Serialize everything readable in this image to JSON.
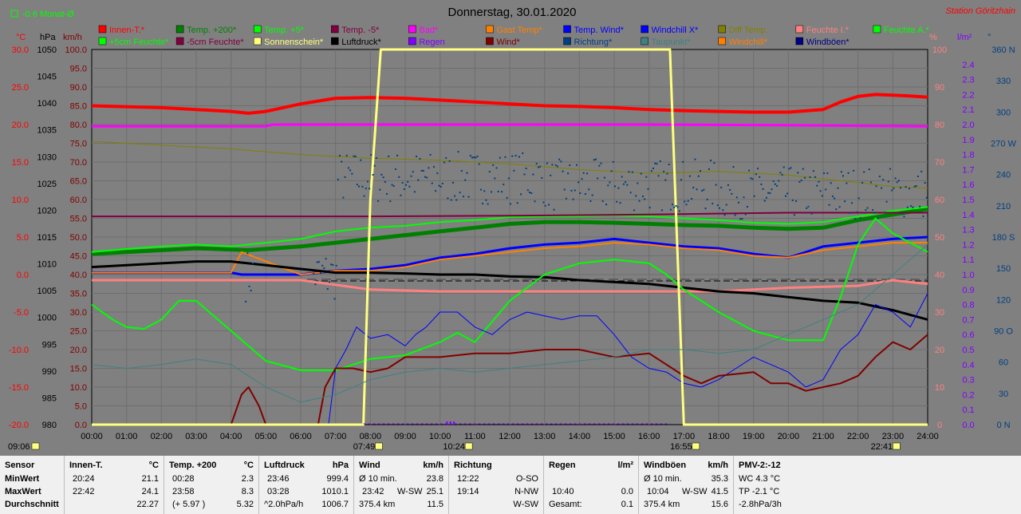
{
  "header": {
    "title": "Donnerstag, 30.01.2020",
    "station": "Station Göritzhain",
    "trend_label": "-0.6 Monat-Ø"
  },
  "axis_units": {
    "celsius": "°C",
    "hpa": "hPa",
    "kmh": "km/h",
    "percent": "%",
    "lm2": "l/m²",
    "degree": "°"
  },
  "legend_row1": [
    {
      "label": "Innen-T.*",
      "color": "#ff0000"
    },
    {
      "label": "Temp. +200*",
      "color": "#008000"
    },
    {
      "label": "Temp. +5*",
      "color": "#00ff00"
    },
    {
      "label": "Temp. -5*",
      "color": "#800040"
    },
    {
      "label": "Bad*",
      "color": "#ff00ff"
    },
    {
      "label": "Gast Temp*",
      "color": "#ff8000"
    },
    {
      "label": "Temp. Wind*",
      "color": "#0000ff"
    },
    {
      "label": "Windchill X*",
      "color": "#0000ff"
    },
    {
      "label": "Diff Temp.",
      "color": "#808000"
    },
    {
      "label": "Feuchte I.*",
      "color": "#ff8080"
    },
    {
      "label": "Feuchte A.*",
      "color": "#00ff00"
    }
  ],
  "legend_row2": [
    {
      "label": "+5cm Feuchte*",
      "color": "#00ff00"
    },
    {
      "label": "-5cm Feuchte*",
      "color": "#800040"
    },
    {
      "label": "Sonnenschein*",
      "color": "#ffff80"
    },
    {
      "label": "Luftdruck*",
      "color": "#000000"
    },
    {
      "label": "Regen",
      "color": "#8000ff"
    },
    {
      "label": "Wind*",
      "color": "#800000"
    },
    {
      "label": "Richtung*",
      "color": "#004080"
    },
    {
      "label": "Taupunkt*",
      "color": "#408080"
    },
    {
      "label": "Windchill*",
      "color": "#ff8000"
    },
    {
      "label": "Windböen*",
      "color": "#000080"
    }
  ],
  "chart_data": {
    "type": "line",
    "x_range": [
      "00:00",
      "24:00"
    ],
    "x_ticks": [
      "00:00",
      "01:00",
      "02:00",
      "03:00",
      "04:00",
      "05:00",
      "06:00",
      "07:00",
      "08:00",
      "09:00",
      "10:00",
      "11:00",
      "12:00",
      "13:00",
      "14:00",
      "15:00",
      "16:00",
      "17:00",
      "18:00",
      "19:00",
      "20:00",
      "21:00",
      "22:00",
      "23:00",
      "24:00"
    ],
    "y_axes": {
      "celsius": {
        "ticks": [
          "30.0",
          "25.0",
          "20.0",
          "15.0",
          "10.0",
          "5.0",
          "0.0",
          "-5.0",
          "-10.0",
          "-15.0",
          "-20.0"
        ],
        "range": [
          -20,
          30
        ]
      },
      "hpa": {
        "ticks": [
          "1050",
          "1045",
          "1040",
          "1035",
          "1030",
          "1025",
          "1020",
          "1015",
          "1010",
          "1005",
          "1000",
          "995",
          "990",
          "985",
          "980"
        ],
        "range": [
          980,
          1050
        ]
      },
      "kmh": {
        "ticks": [
          "100.0",
          "95.0",
          "90.0",
          "85.0",
          "80.0",
          "75.0",
          "70.0",
          "65.0",
          "60.0",
          "55.0",
          "50.0",
          "45.0",
          "40.0",
          "35.0",
          "30.0",
          "25.0",
          "20.0",
          "15.0",
          "10.0",
          "5.0",
          "0.0"
        ],
        "range": [
          0,
          100
        ]
      },
      "percent": {
        "ticks": [
          "100",
          "90",
          "80",
          "70",
          "60",
          "50",
          "40",
          "30",
          "20",
          "10",
          "0"
        ],
        "range": [
          0,
          100
        ]
      },
      "lm2": {
        "ticks": [
          "2.4",
          "2.3",
          "2.2",
          "2.1",
          "2.0",
          "1.9",
          "1.8",
          "1.7",
          "1.6",
          "1.5",
          "1.4",
          "1.3",
          "1.2",
          "1.1",
          "1.0",
          "0.9",
          "0.8",
          "0.7",
          "0.6",
          "0.5",
          "0.4",
          "0.3",
          "0.2",
          "0.1",
          "0.0"
        ],
        "range": [
          0,
          2.5
        ]
      },
      "direction": {
        "ticks": [
          "360 N",
          "330",
          "300",
          "270 W",
          "240",
          "210",
          "180 S",
          "150",
          "120",
          "90 O",
          "60",
          "30",
          "0 N"
        ],
        "range": [
          0,
          360
        ]
      }
    },
    "time_markers": [
      {
        "label": "09:06",
        "x": 0.0
      },
      {
        "label": "07:49",
        "x": 7.82
      },
      {
        "label": "10:24",
        "x": 10.4
      },
      {
        "label": "16:55",
        "x": 16.92
      },
      {
        "label": "22:41",
        "x": 22.68
      }
    ],
    "series": [
      {
        "name": "Innen-T.*",
        "axis": "kmh",
        "color": "#ff0000",
        "width": 4,
        "x": [
          0,
          2,
          4,
          4.5,
          5,
          6,
          7,
          8,
          9,
          10,
          11,
          12,
          13,
          14,
          15,
          16,
          17,
          18,
          19,
          20,
          21,
          21.5,
          22,
          22.5,
          23,
          23.5,
          24
        ],
        "y": [
          85,
          84.5,
          83.5,
          83,
          83.5,
          85.5,
          87,
          87.2,
          87,
          86.5,
          86,
          85.5,
          85,
          84.8,
          84.5,
          84,
          83.7,
          83.5,
          83.3,
          83.3,
          84,
          86,
          87.5,
          88,
          87.8,
          87.6,
          87.3
        ]
      },
      {
        "name": "Bad*",
        "axis": "kmh",
        "color": "#ff00ff",
        "width": 3,
        "x": [
          0,
          5,
          5.2,
          10,
          16,
          20,
          24
        ],
        "y": [
          79.5,
          79.5,
          80,
          80,
          80,
          79.8,
          79.5
        ]
      },
      {
        "name": "Diff Temp.",
        "axis": "kmh",
        "color": "#808000",
        "width": 1,
        "x": [
          0,
          2,
          4,
          6,
          8,
          10,
          12,
          14,
          16,
          18,
          20,
          22,
          23,
          24
        ],
        "y": [
          75.5,
          74.5,
          73.5,
          72,
          71,
          70.5,
          69.5,
          68,
          67,
          67.5,
          66.5,
          64.5,
          63.5,
          63
        ]
      },
      {
        "name": "Temp. +200*",
        "axis": "kmh",
        "color": "#008000",
        "width": 5,
        "x": [
          0,
          1,
          3,
          4.5,
          6,
          8,
          9,
          10,
          11,
          12,
          13,
          14,
          15,
          16,
          17,
          18,
          19,
          20,
          21,
          22,
          23,
          24
        ],
        "y": [
          45.5,
          46,
          47,
          46.5,
          47.5,
          49.5,
          50.5,
          51.5,
          52.5,
          53.5,
          54,
          54,
          53.8,
          53.5,
          53.2,
          53,
          52.5,
          52.2,
          52.5,
          54.5,
          56,
          57.5
        ]
      },
      {
        "name": "Temp. +5*",
        "axis": "kmh",
        "color": "#00ff00",
        "width": 2,
        "x": [
          0,
          1,
          2,
          3,
          4,
          5,
          6,
          7,
          8,
          9,
          10,
          11,
          12,
          13,
          14,
          15,
          16,
          17,
          18,
          19,
          20,
          21,
          22,
          23,
          24
        ],
        "y": [
          46,
          46.8,
          47.5,
          48,
          47.5,
          48.5,
          49.5,
          51.5,
          52.5,
          53,
          54,
          54.5,
          55.3,
          55.5,
          55.5,
          55.8,
          55.5,
          55,
          54.5,
          53.8,
          53.5,
          54,
          55.5,
          57,
          58
        ]
      },
      {
        "name": "Temp. -5*",
        "axis": "kmh",
        "color": "#800040",
        "width": 2,
        "x": [
          0,
          4,
          8,
          12,
          16,
          20,
          24
        ],
        "y": [
          55.5,
          55.5,
          55.5,
          55.7,
          56,
          56.5,
          56.5
        ]
      },
      {
        "name": "Temp. Wind*",
        "axis": "kmh",
        "color": "#0000ff",
        "width": 3,
        "x": [
          0,
          4,
          4.3,
          6,
          7,
          8,
          9,
          10,
          11,
          12,
          13,
          14,
          15,
          16,
          17,
          18,
          19,
          20,
          21,
          22,
          23,
          24
        ],
        "y": [
          40.5,
          40.5,
          40,
          40,
          41,
          41.5,
          42.5,
          44.5,
          45.5,
          47,
          48,
          48.5,
          49.5,
          48.5,
          47.5,
          47,
          45.5,
          44.5,
          47.5,
          48.5,
          49.5,
          50
        ]
      },
      {
        "name": "Windchill*",
        "axis": "kmh",
        "color": "#ff8000",
        "width": 2,
        "x": [
          0,
          4,
          4.3,
          6,
          7,
          8,
          9,
          10,
          11,
          12,
          13,
          14,
          15,
          16,
          17,
          18,
          19,
          20,
          21,
          22,
          23,
          24
        ],
        "y": [
          40.5,
          40.5,
          46,
          40,
          41,
          41,
          42,
          44,
          45,
          46,
          47,
          47.5,
          48.5,
          48,
          47,
          46.5,
          45,
          44.5,
          46.5,
          47.5,
          48.5,
          48.5
        ]
      },
      {
        "name": "Feuchte I.*",
        "axis": "kmh",
        "color": "#ff8080",
        "width": 3,
        "x": [
          0,
          4,
          6,
          8,
          10,
          12,
          14,
          16,
          17,
          18,
          20,
          22,
          23,
          24
        ],
        "y": [
          38.5,
          38.5,
          38.5,
          36,
          35.5,
          35.5,
          35.5,
          35.5,
          35.5,
          35.5,
          36.5,
          37,
          38.5,
          37.5
        ]
      },
      {
        "name": "Luftdruck*",
        "axis": "kmh",
        "color": "#000000",
        "width": 3,
        "x": [
          0,
          2,
          3,
          4,
          5,
          6,
          7,
          8,
          9,
          10,
          11,
          12,
          13,
          14,
          15,
          16,
          17,
          18,
          19,
          20,
          21,
          22,
          23,
          24
        ],
        "y": [
          42,
          43,
          43.5,
          43.5,
          42.5,
          41.5,
          40.5,
          40.5,
          40.3,
          40,
          40,
          39.5,
          39.3,
          38.5,
          38,
          37.5,
          36.5,
          35.5,
          35,
          34,
          33,
          32.5,
          30.5,
          28
        ]
      },
      {
        "name": "Feuchte A.*",
        "axis": "kmh",
        "color": "#00ff00",
        "width": 2,
        "x": [
          0,
          0.6,
          1,
          1.5,
          2,
          2.5,
          3,
          3.5,
          4,
          5,
          6,
          7,
          8,
          9,
          10,
          10.5,
          11,
          12,
          13,
          14,
          15,
          16,
          16.5,
          17,
          18,
          19,
          20,
          21,
          21.5,
          22,
          22.5,
          23,
          24
        ],
        "y": [
          32,
          28,
          26,
          25.5,
          28,
          33,
          33,
          29,
          25,
          17,
          14.5,
          14.5,
          17.5,
          18.5,
          22,
          24.5,
          22,
          33,
          40,
          43,
          44,
          43,
          40,
          36,
          30,
          25,
          22.5,
          22.5,
          34,
          48,
          55,
          51,
          46
        ]
      },
      {
        "name": "Windböen*",
        "axis": "kmh",
        "color": "#0000ff",
        "width": 1,
        "x": [
          0,
          6.5,
          6.8,
          7,
          7.3,
          7.6,
          8,
          8.5,
          9,
          9.3,
          9.6,
          10,
          10.5,
          11,
          11.5,
          12,
          12.5,
          13,
          13.5,
          14,
          14.5,
          15,
          15.5,
          16,
          16.5,
          17,
          17.5,
          18,
          18.5,
          19,
          19.5,
          20,
          20.5,
          21,
          21.5,
          22,
          22.5,
          23,
          23.5,
          24
        ],
        "y": [
          0,
          0,
          0,
          15,
          20,
          26,
          23,
          24,
          21,
          24,
          26,
          30,
          30,
          26,
          24,
          28,
          30,
          29,
          28,
          29,
          29,
          24,
          18,
          15,
          14,
          11,
          10,
          12,
          15,
          18,
          16,
          14,
          10,
          12,
          20,
          24,
          32,
          30,
          26,
          35
        ]
      },
      {
        "name": "Wind*",
        "axis": "kmh",
        "color": "#800000",
        "width": 2,
        "x": [
          0,
          4,
          4.3,
          4.5,
          4.8,
          5,
          6.5,
          6.7,
          7,
          7.5,
          8,
          8.5,
          9,
          10,
          11,
          12,
          13,
          14,
          15,
          16,
          17,
          17.5,
          18,
          19,
          19.5,
          20,
          20.5,
          21,
          21.5,
          22,
          22.5,
          23,
          23.5,
          24
        ],
        "y": [
          0,
          0,
          8,
          10,
          5,
          0,
          0,
          10,
          15,
          15,
          14,
          15,
          18,
          18,
          19,
          19,
          20,
          20,
          18,
          19,
          13,
          11,
          13,
          14,
          11,
          11,
          9,
          10,
          11,
          13,
          18,
          22,
          20,
          24
        ]
      },
      {
        "name": "Sonnenschein*",
        "axis": "percent",
        "color": "#ffff80",
        "width": 3,
        "x": [
          0,
          7.8,
          8.0,
          8.3,
          16.3,
          16.6,
          17.0,
          24
        ],
        "y": [
          0,
          0,
          60,
          100,
          100,
          100,
          0,
          0
        ]
      },
      {
        "name": "Taupunkt*",
        "axis": "kmh",
        "color": "#408080",
        "width": 1,
        "x": [
          0,
          1,
          2,
          3,
          4,
          5,
          6,
          7,
          8,
          9,
          10,
          11,
          12,
          13,
          14,
          15,
          16,
          17,
          18,
          19,
          20,
          21,
          22,
          23,
          24
        ],
        "y": [
          16,
          15,
          16,
          17.5,
          16,
          10,
          6,
          8,
          12,
          14,
          15,
          14,
          15,
          16,
          17,
          18,
          20,
          20,
          19,
          20,
          24,
          28,
          32,
          40,
          48
        ]
      }
    ]
  },
  "stats": {
    "sensor": {
      "header": "Sensor",
      "rows": [
        "MinWert",
        "MaxWert",
        "Durchschnitt"
      ]
    },
    "innen": {
      "title": "Innen-T.",
      "unit": "°C",
      "rows": [
        [
          "20:24",
          "21.1"
        ],
        [
          "22:42",
          "24.1"
        ],
        [
          "",
          "22.27"
        ]
      ]
    },
    "temp200": {
      "title": "Temp. +200",
      "unit": "°C",
      "rows": [
        [
          "00:28",
          "2.3"
        ],
        [
          "23:58",
          "8.3"
        ],
        [
          "(+ 5.97 )",
          "5.32"
        ]
      ]
    },
    "luftdruck": {
      "title": "Luftdruck",
      "unit": "hPa",
      "rows": [
        [
          "23:46",
          "999.4"
        ],
        [
          "03:28",
          "1010.1"
        ],
        [
          "^2.0hPa/h",
          "1006.7"
        ]
      ]
    },
    "wind": {
      "title": "Wind",
      "unit": "km/h",
      "rows": [
        [
          "Ø 10 min.",
          "",
          "23.8"
        ],
        [
          "23:42",
          "W-SW",
          "25.1"
        ],
        [
          "375.4 km",
          "",
          "11.5"
        ]
      ]
    },
    "richtung": {
      "title": "Richtung",
      "rows": [
        [
          "12:22",
          "O-SO"
        ],
        [
          "19:14",
          "N-NW"
        ],
        [
          "",
          "W-SW"
        ]
      ]
    },
    "regen": {
      "title": "Regen",
      "unit": "l/m²",
      "rows": [
        [
          "",
          ""
        ],
        [
          "10:40",
          "0.0"
        ],
        [
          "Gesamt:",
          "0.1"
        ]
      ]
    },
    "windboeen": {
      "title": "Windböen",
      "unit": "km/h",
      "rows": [
        [
          "Ø 10 min.",
          "",
          "35.3"
        ],
        [
          "10:04",
          "W-SW",
          "41.5"
        ],
        [
          "375.4 km",
          "",
          "15.6"
        ]
      ]
    },
    "pmv": {
      "title": "PMV-2:-12",
      "rows": [
        "WC 4.3 °C",
        "TP -2.1 °C",
        "-2.8hPa/3h"
      ]
    }
  }
}
